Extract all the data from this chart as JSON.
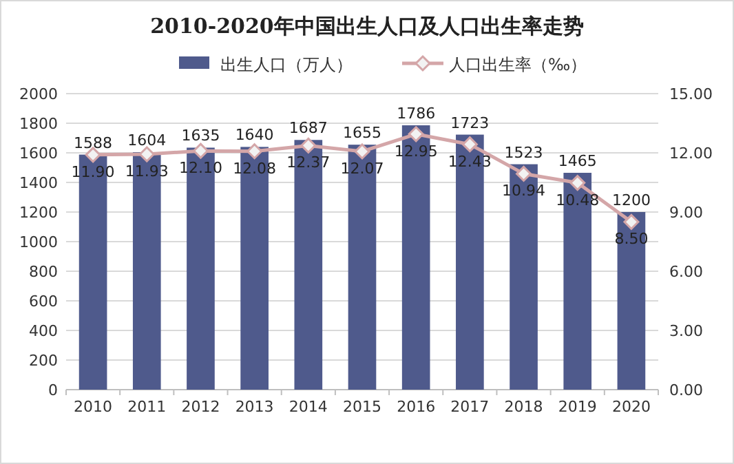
{
  "chart_data": {
    "type": "bar",
    "title": "2010-2020年中国出生人口及人口出生率走势",
    "categories": [
      "2010",
      "2011",
      "2012",
      "2013",
      "2014",
      "2015",
      "2016",
      "2017",
      "2018",
      "2019",
      "2020"
    ],
    "series": [
      {
        "name": "出生人口（万人）",
        "color": "#4f5a8c",
        "values": [
          1588,
          1604,
          1635,
          1640,
          1687,
          1655,
          1786,
          1723,
          1523,
          1465,
          1200
        ],
        "value_labels": [
          "1588",
          "1604",
          "1635",
          "1640",
          "1687",
          "1655",
          "1786",
          "1723",
          "1523",
          "1465",
          "1200"
        ]
      },
      {
        "name": "人口出生率（‰）",
        "type": "line",
        "axis": "y2",
        "color": "#d4a6a8",
        "marker": "diamond",
        "values": [
          11.9,
          11.93,
          12.1,
          12.08,
          12.37,
          12.07,
          12.95,
          12.43,
          10.94,
          10.48,
          8.5
        ],
        "value_labels": [
          "11.90",
          "11.93",
          "12.10",
          "12.08",
          "12.37",
          "12.07",
          "12.95",
          "12.43",
          "10.94",
          "10.48",
          "8.50"
        ]
      }
    ],
    "ylim": [
      0,
      2000
    ],
    "yticks": [
      0,
      200,
      400,
      600,
      800,
      1000,
      1200,
      1400,
      1600,
      1800,
      2000
    ],
    "y2lim": [
      0,
      15
    ],
    "y2ticks": [
      {
        "value": 0,
        "label": "0.00"
      },
      {
        "value": 3,
        "label": "3.00"
      },
      {
        "value": 6,
        "label": "6.00"
      },
      {
        "value": 9,
        "label": "9.00"
      },
      {
        "value": 12,
        "label": "12.00"
      },
      {
        "value": 15,
        "label": "15.00"
      }
    ],
    "grid": "y",
    "legend": "top"
  }
}
